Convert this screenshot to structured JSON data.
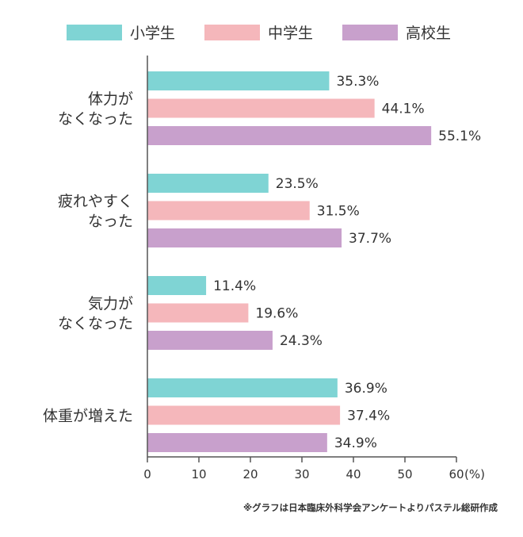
{
  "chart_data": {
    "type": "bar",
    "orientation": "horizontal",
    "categories": [
      [
        "体力が",
        "なくなった"
      ],
      [
        "疲れやすく",
        "なった"
      ],
      [
        "気力が",
        "なくなった"
      ],
      [
        "体重が増えた"
      ]
    ],
    "series": [
      {
        "name": "小学生",
        "color": "#7fd4d4",
        "values": [
          35.3,
          23.5,
          11.4,
          36.9
        ],
        "labels": [
          "35.3%",
          "23.5%",
          "11.4%",
          "36.9%"
        ]
      },
      {
        "name": "中学生",
        "color": "#f5b7bb",
        "values": [
          44.1,
          31.5,
          19.6,
          37.4
        ],
        "labels": [
          "44.1%",
          "31.5%",
          "19.6%",
          "37.4%"
        ]
      },
      {
        "name": "高校生",
        "color": "#c8a0cc",
        "values": [
          55.1,
          37.7,
          24.3,
          34.9
        ],
        "labels": [
          "55.1%",
          "37.7%",
          "24.3%",
          "34.9%"
        ]
      }
    ],
    "xlim": [
      0,
      60
    ],
    "xticks": [
      "0",
      "10",
      "20",
      "30",
      "40",
      "50",
      "60"
    ],
    "xunit": "(%)",
    "legend_position": "top",
    "grid": false,
    "source_note": "※グラフは日本臨床外科学会アンケートよりパステル総研作成"
  }
}
